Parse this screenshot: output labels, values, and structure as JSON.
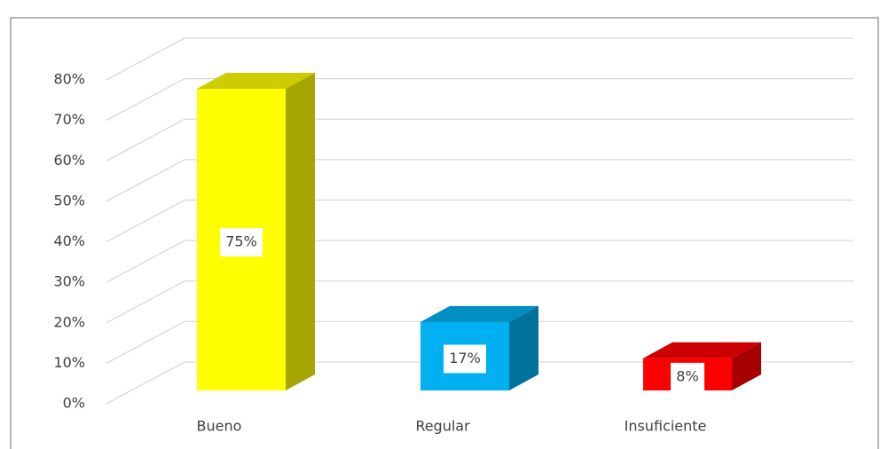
{
  "chart_data": {
    "type": "bar3d",
    "categories": [
      "Bueno",
      "Regular",
      "Insuficiente"
    ],
    "values": [
      75,
      17,
      8
    ],
    "value_labels": [
      "75%",
      "17%",
      "8%"
    ],
    "colors": [
      "#ffff00",
      "#00b0f0",
      "#ff0000"
    ],
    "ylim": [
      0,
      80
    ],
    "yticks": [
      {
        "value": 0,
        "label": "0%"
      },
      {
        "value": 10,
        "label": "10%"
      },
      {
        "value": 20,
        "label": "20%"
      },
      {
        "value": 30,
        "label": "30%"
      },
      {
        "value": 40,
        "label": "40%"
      },
      {
        "value": 50,
        "label": "50%"
      },
      {
        "value": 60,
        "label": "60%"
      },
      {
        "value": 70,
        "label": "70%"
      },
      {
        "value": 80,
        "label": "80%"
      }
    ],
    "grid": true
  }
}
